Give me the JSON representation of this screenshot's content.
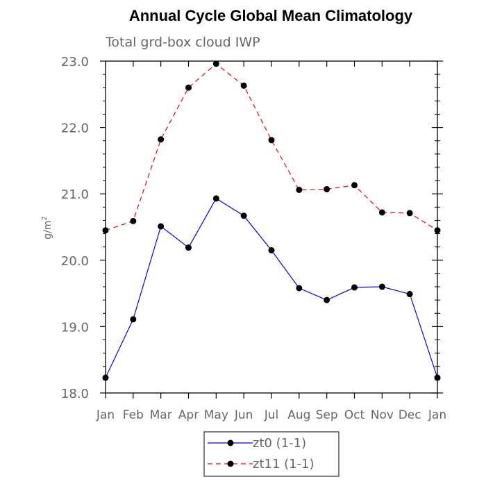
{
  "chart_data": {
    "type": "line",
    "title": "Annual Cycle Global Mean Climatology",
    "subtitle": "Total grd-box cloud IWP",
    "ylabel_base": "g/m",
    "ylabel_sup": "2",
    "xlabel": "",
    "categories": [
      "Jan",
      "Feb",
      "Mar",
      "Apr",
      "May",
      "Jun",
      "Jul",
      "Aug",
      "Sep",
      "Oct",
      "Nov",
      "Dec",
      "Jan"
    ],
    "ylim": [
      18.0,
      23.0
    ],
    "yticks": [
      "18.0",
      "19.0",
      "20.0",
      "21.0",
      "22.0",
      "23.0"
    ],
    "grid": false,
    "legend_position": "bottom-center",
    "series": [
      {
        "name": "zt0  (1-1)",
        "color": "#0000ff",
        "dash": "solid",
        "values": [
          18.23,
          19.11,
          20.51,
          20.19,
          20.93,
          20.67,
          20.15,
          19.58,
          19.4,
          19.59,
          19.6,
          19.49,
          18.23
        ]
      },
      {
        "name": "zt11  (1-1)",
        "color": "#ff0000",
        "dash": "dashed",
        "values": [
          20.45,
          20.59,
          21.82,
          22.6,
          22.96,
          22.63,
          21.81,
          21.06,
          21.07,
          21.13,
          20.72,
          20.71,
          20.45
        ]
      }
    ]
  }
}
